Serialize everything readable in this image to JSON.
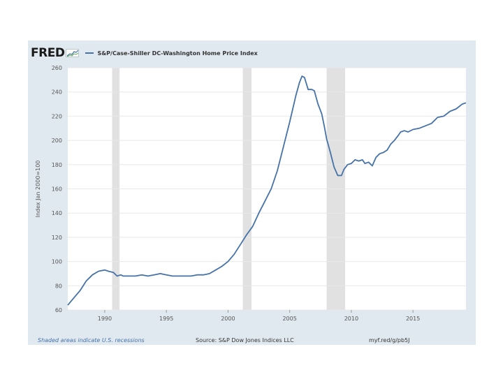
{
  "header": {
    "logo_text": "FRED",
    "legend_label": "S&P/Case-Shiller DC-Washington Home Price Index"
  },
  "footer": {
    "recession_note": "Shaded areas indicate U.S. recessions",
    "source": "Source: S&P Dow Jones Indices LLC",
    "short_url": "myf.red/g/pb5J"
  },
  "colors": {
    "panel": "#e1e9f0",
    "plot_bg": "#ffffff",
    "line": "#4572a7",
    "recession": "#e1e1e1",
    "note": "#4572a7"
  },
  "chart_data": {
    "type": "line",
    "ylabel": "Index Jan 2000=100",
    "xlim": [
      1987.0,
      2019.3
    ],
    "ylim": [
      60,
      260
    ],
    "yticks": [
      60,
      80,
      100,
      120,
      140,
      160,
      180,
      200,
      220,
      240,
      260
    ],
    "xticks": [
      1990,
      1995,
      2000,
      2005,
      2010,
      2015
    ],
    "grid": true,
    "legend_position": "top-left",
    "recessions": [
      [
        1990.6,
        1991.2
      ],
      [
        2001.2,
        2001.9
      ],
      [
        2008.0,
        2009.5
      ]
    ],
    "series": [
      {
        "name": "S&P/Case-Shiller DC-Washington Home Price Index",
        "x": [
          1987.0,
          1987.5,
          1988.0,
          1988.5,
          1989.0,
          1989.5,
          1990.0,
          1990.3,
          1990.7,
          1991.0,
          1991.3,
          1991.5,
          1992.0,
          1992.5,
          1993.0,
          1993.5,
          1994.0,
          1994.5,
          1995.0,
          1995.5,
          1996.0,
          1996.5,
          1997.0,
          1997.5,
          1998.0,
          1998.5,
          1999.0,
          1999.5,
          2000.0,
          2000.5,
          2001.0,
          2001.5,
          2002.0,
          2002.5,
          2003.0,
          2003.5,
          2004.0,
          2004.5,
          2005.0,
          2005.5,
          2005.8,
          2006.0,
          2006.2,
          2006.5,
          2006.8,
          2007.0,
          2007.3,
          2007.6,
          2007.8,
          2008.0,
          2008.3,
          2008.6,
          2008.9,
          2009.2,
          2009.4,
          2009.7,
          2010.0,
          2010.3,
          2010.6,
          2010.9,
          2011.1,
          2011.4,
          2011.7,
          2012.0,
          2012.3,
          2012.6,
          2012.9,
          2013.2,
          2013.5,
          2013.8,
          2014.0,
          2014.3,
          2014.6,
          2015.0,
          2015.5,
          2016.0,
          2016.5,
          2017.0,
          2017.5,
          2018.0,
          2018.5,
          2019.0,
          2019.3
        ],
        "y": [
          64,
          70,
          76,
          84,
          89,
          92,
          93,
          92,
          91,
          88,
          89,
          88,
          88,
          88,
          89,
          88,
          89,
          90,
          89,
          88,
          88,
          88,
          88,
          89,
          89,
          90,
          93,
          96,
          100,
          106,
          114,
          122,
          129,
          140,
          150,
          160,
          175,
          195,
          215,
          237,
          248,
          253,
          252,
          242,
          242,
          241,
          230,
          222,
          212,
          201,
          190,
          178,
          171,
          171,
          176,
          180,
          181,
          184,
          183,
          184,
          181,
          182,
          179,
          186,
          189,
          190,
          192,
          197,
          200,
          204,
          207,
          208,
          207,
          209,
          210,
          212,
          214,
          219,
          220,
          224,
          226,
          230,
          231
        ]
      }
    ]
  }
}
